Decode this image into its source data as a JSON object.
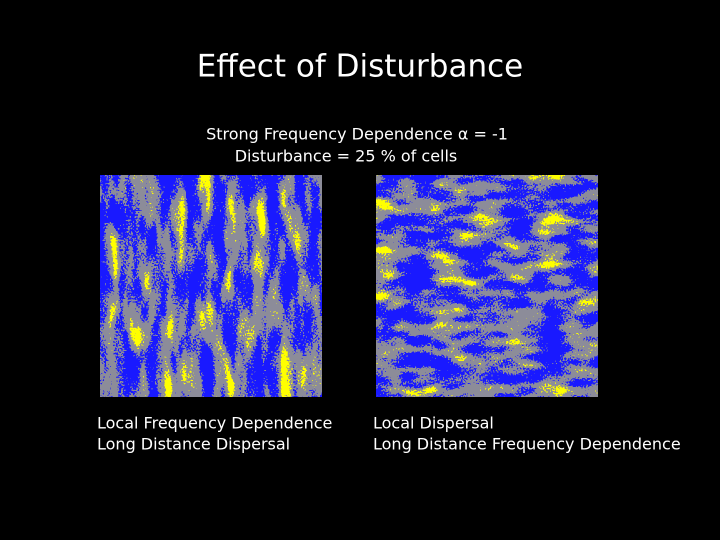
{
  "slide": {
    "title": "Effect of Disturbance",
    "subtitle": [
      "Strong Frequency Dependence α = -1",
      "Disturbance = 25 % of cells"
    ],
    "panels": [
      {
        "caption": [
          "Local Frequency Dependence",
          "Long Distance Dispersal"
        ]
      },
      {
        "caption": [
          "Local Dispersal",
          "Long Distance Frequency Dependence"
        ]
      }
    ]
  }
}
